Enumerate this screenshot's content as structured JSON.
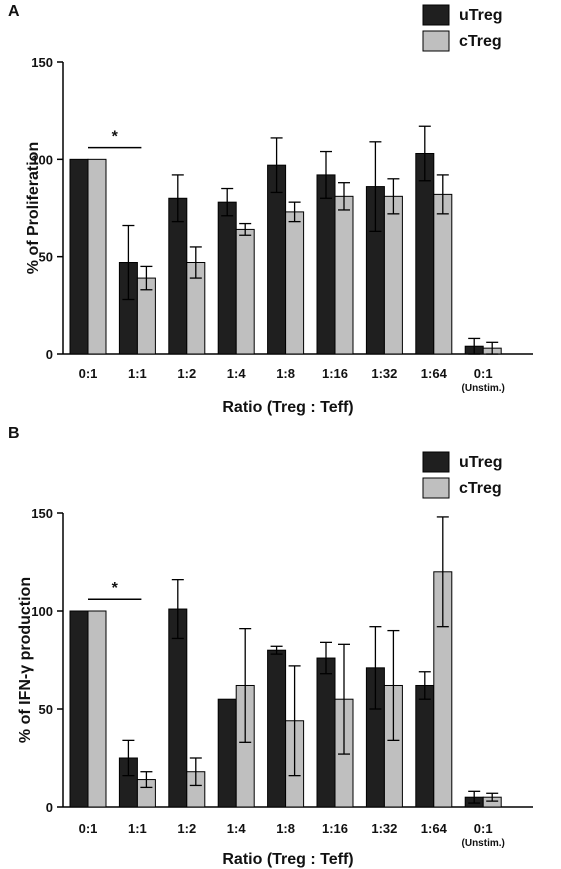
{
  "chart_data": [
    {
      "type": "bar",
      "panel_label": "A",
      "categories": [
        "0:1",
        "1:1",
        "1:2",
        "1:4",
        "1:8",
        "1:16",
        "1:32",
        "1:64",
        "0:1"
      ],
      "category_sublabels": [
        "",
        "",
        "",
        "",
        "",
        "",
        "",
        "",
        "(Unstim.)"
      ],
      "series": [
        {
          "name": "uTreg",
          "color": "#1f1f1f",
          "values": [
            100,
            47,
            80,
            78,
            97,
            92,
            86,
            103,
            4
          ],
          "errors": [
            0,
            19,
            12,
            7,
            14,
            12,
            23,
            14,
            4
          ]
        },
        {
          "name": "cTreg",
          "color": "#bfbfbf",
          "values": [
            100,
            39,
            47,
            64,
            73,
            81,
            81,
            82,
            3
          ],
          "errors": [
            0,
            6,
            8,
            3,
            5,
            7,
            9,
            10,
            3
          ]
        }
      ],
      "xlabel": "Ratio (Treg : Teff)",
      "ylabel": "% of Proliferation",
      "ylim": [
        0,
        150
      ],
      "yticks": [
        "0",
        "50",
        "100",
        "150"
      ],
      "significance": {
        "label": "*",
        "from": "0:1",
        "to": "1:1"
      },
      "legend": "top-right"
    },
    {
      "type": "bar",
      "panel_label": "B",
      "categories": [
        "0:1",
        "1:1",
        "1:2",
        "1:4",
        "1:8",
        "1:16",
        "1:32",
        "1:64",
        "0:1"
      ],
      "category_sublabels": [
        "",
        "",
        "",
        "",
        "",
        "",
        "",
        "",
        "(Unstim.)"
      ],
      "series": [
        {
          "name": "uTreg",
          "color": "#1f1f1f",
          "values": [
            100,
            25,
            101,
            55,
            80,
            76,
            71,
            62,
            5
          ],
          "errors": [
            0,
            9,
            15,
            0,
            2,
            8,
            21,
            7,
            3
          ]
        },
        {
          "name": "cTreg",
          "color": "#bfbfbf",
          "values": [
            100,
            14,
            18,
            62,
            44,
            55,
            62,
            120,
            5
          ],
          "errors": [
            0,
            4,
            7,
            29,
            28,
            28,
            28,
            28,
            2
          ]
        }
      ],
      "xlabel": "Ratio (Treg : Teff)",
      "ylabel": "% of IFN-γ production",
      "ylim": [
        0,
        150
      ],
      "yticks": [
        "0",
        "50",
        "100",
        "150"
      ],
      "significance": {
        "label": "*",
        "from": "0:1",
        "to": "1:1"
      },
      "legend": "top-right"
    }
  ]
}
